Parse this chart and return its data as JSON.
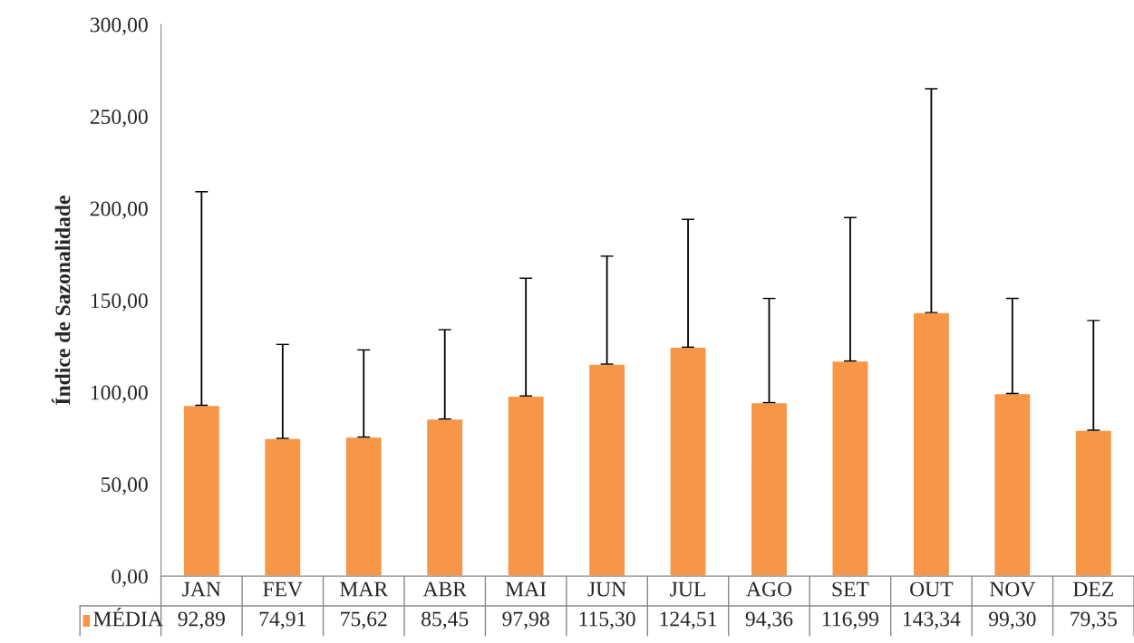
{
  "chart_data": {
    "type": "bar",
    "ylabel": "Índice de Sazonalidade",
    "categories": [
      "JAN",
      "FEV",
      "MAR",
      "ABR",
      "MAI",
      "JUN",
      "JUL",
      "AGO",
      "SET",
      "OUT",
      "NOV",
      "DEZ"
    ],
    "series": [
      {
        "name": "MÉDIA",
        "color": "#f79646",
        "values": [
          92.89,
          74.91,
          75.62,
          85.45,
          97.98,
          115.3,
          124.51,
          94.36,
          116.99,
          143.34,
          99.3,
          79.35
        ],
        "value_labels": [
          "92,89",
          "74,91",
          "75,62",
          "85,45",
          "97,98",
          "115,30",
          "124,51",
          "94,36",
          "116,99",
          "143,34",
          "99,30",
          "79,35"
        ],
        "errors": [
          [
            92.89,
            209
          ],
          [
            74.91,
            126
          ],
          [
            75.62,
            123
          ],
          [
            85.45,
            134
          ],
          [
            97.98,
            162
          ],
          [
            115.3,
            174
          ],
          [
            124.51,
            194
          ],
          [
            94.36,
            151
          ],
          [
            116.99,
            195
          ],
          [
            143.34,
            265
          ],
          [
            99.3,
            151
          ],
          [
            79.35,
            139
          ]
        ]
      }
    ],
    "ylim": [
      0,
      300
    ],
    "yticks": [
      {
        "value": 0,
        "label": "0,00"
      },
      {
        "value": 50,
        "label": "50,00"
      },
      {
        "value": 100,
        "label": "100,00"
      },
      {
        "value": 150,
        "label": "150,00"
      },
      {
        "value": 200,
        "label": "200,00"
      },
      {
        "value": 250,
        "label": "250,00"
      },
      {
        "value": 300,
        "label": "300,00"
      }
    ],
    "grid": false,
    "legend": "bottom"
  }
}
